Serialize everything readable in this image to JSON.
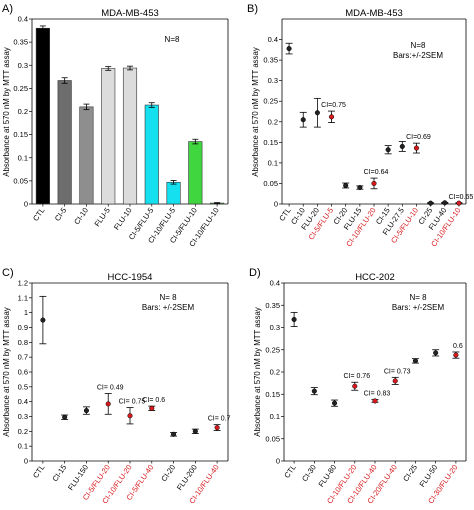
{
  "figure": {
    "ylabel": "Absorbance at 570 nM by MTT assay",
    "red_color": "#d7191c",
    "black_color": "#000000"
  },
  "chart_data": [
    {
      "type": "bar",
      "panel": "A)",
      "title": "MDA-MB-453",
      "ylabel": "Absorbance at 570 nM by MTT assay",
      "ylim": [
        0,
        0.4
      ],
      "yticks": [
        "0",
        "0.05",
        "0.1",
        "0.15",
        "0.2",
        "0.25",
        "0.3",
        "0.35",
        "0.4"
      ],
      "notes": [
        "N=8"
      ],
      "categories": [
        "CTL",
        "CI-5",
        "CI-10",
        "FLU-5",
        "FLU-10",
        "CI-5/FLU-5",
        "CI-10/FLU-5",
        "CI-5/FLU-10",
        "CI-10/FLU-10"
      ],
      "values": [
        0.38,
        0.267,
        0.21,
        0.293,
        0.294,
        0.214,
        0.047,
        0.135,
        0.002
      ],
      "errors": [
        0.005,
        0.006,
        0.006,
        0.004,
        0.004,
        0.005,
        0.004,
        0.005,
        0.001
      ],
      "colors": [
        "#000000",
        "#6d6d6d",
        "#8e8e8e",
        "#dcdcdc",
        "#dcdcdc",
        "#14e0ef",
        "#14e0ef",
        "#3fd640",
        "#3fd640"
      ]
    },
    {
      "type": "scatter",
      "panel": "B)",
      "title": "MDA-MB-453",
      "ylabel": "Absorbance at 570 nM by MTT assay",
      "ylim": [
        0,
        0.45
      ],
      "yticks": [
        "0",
        "0.05",
        "0.1",
        "0.15",
        "0.2",
        "0.25",
        "0.3",
        "0.35",
        "0.4"
      ],
      "notes": [
        "N=8",
        "Bars:+/-2SEM"
      ],
      "categories": [
        "CTL",
        "CI-10",
        "FLU-20",
        "CI-5/FLU-5",
        "CI-20",
        "FLU-15",
        "CI-10/FLU-20",
        "CI-15",
        "FLU-27.5",
        "CI-5/FLU-10",
        "CI-25",
        "FLU-40",
        "CI-10/FLU-10"
      ],
      "red_categories": [
        "CI-5/FLU-5",
        "CI-10/FLU-20",
        "CI-5/FLU-10",
        "CI-10/FLU-10"
      ],
      "values": [
        0.378,
        0.205,
        0.222,
        0.212,
        0.045,
        0.04,
        0.05,
        0.132,
        0.14,
        0.136,
        0.002,
        0.003,
        0.002
      ],
      "errors": [
        0.013,
        0.018,
        0.035,
        0.014,
        0.006,
        0.004,
        0.013,
        0.01,
        0.012,
        0.012,
        0.001,
        0.001,
        0.001
      ],
      "marker_red": [
        false,
        false,
        false,
        true,
        false,
        false,
        true,
        false,
        false,
        true,
        false,
        false,
        true
      ],
      "ci_labels": [
        {
          "label": "CI=0.75",
          "index": 3
        },
        {
          "label": "CI=0.64",
          "index": 6
        },
        {
          "label": "CI=0.69",
          "index": 9
        },
        {
          "label": "CI=0.65",
          "index": 12
        }
      ]
    },
    {
      "type": "scatter",
      "panel": "C)",
      "title": "HCC-1954",
      "ylabel": "Absorbance at 570 nM by MTT assay",
      "ylim": [
        0,
        1.2
      ],
      "yticks": [
        "0",
        "0.1",
        "0.2",
        "0.3",
        "0.4",
        "0.5",
        "0.6",
        "0.7",
        "0.8",
        "0.9",
        "1",
        "1.1",
        "1.2"
      ],
      "notes": [
        "N= 8",
        "Bars: +/-2SEM"
      ],
      "categories": [
        "CTL",
        "CI-15",
        "FLU-150",
        "CI-5/FLU-20",
        "CI-10/FLU-20",
        "CI-5/FLU-40",
        "CI-20",
        "FLU-200",
        "CI-10/FLU-40"
      ],
      "red_categories": [
        "CI-5/FLU-20",
        "CI-10/FLU-20",
        "CI-5/FLU-40",
        "CI-10/FLU-40"
      ],
      "values": [
        0.95,
        0.295,
        0.34,
        0.385,
        0.305,
        0.355,
        0.18,
        0.2,
        0.225
      ],
      "errors": [
        0.16,
        0.015,
        0.025,
        0.07,
        0.055,
        0.015,
        0.012,
        0.015,
        0.02
      ],
      "marker_red": [
        false,
        false,
        false,
        true,
        true,
        true,
        false,
        false,
        true
      ],
      "ci_labels": [
        {
          "label": "CI= 0.49",
          "index": 3
        },
        {
          "label": "CI= 0.75",
          "index": 4
        },
        {
          "label": "CI= 0.6",
          "index": 5
        },
        {
          "label": "CI= 0.7",
          "index": 8
        }
      ]
    },
    {
      "type": "scatter",
      "panel": "D)",
      "title": "HCC-202",
      "ylabel": "Absorbance at 570 nM by MTT assay",
      "ylim": [
        0,
        0.4
      ],
      "yticks": [
        "0",
        "0.05",
        "0.1",
        "0.15",
        "0.2",
        "0.25",
        "0.3",
        "0.35",
        "0.4"
      ],
      "notes": [
        "N= 8",
        "Bars: +/-2SEM"
      ],
      "categories": [
        "CTL",
        "CI-30",
        "FLU-80",
        "CI-10/FLU-20",
        "CI-10/FLU-40",
        "CI-20/FLU-40",
        "CI-25",
        "FLU-50",
        "CI-30/FLU-20"
      ],
      "red_categories": [
        "CI-10/FLU-20",
        "CI-10/FLU-40",
        "CI-20/FLU-40",
        "CI-30/FLU-20"
      ],
      "values": [
        0.318,
        0.157,
        0.13,
        0.168,
        0.135,
        0.18,
        0.225,
        0.243,
        0.238
      ],
      "errors": [
        0.016,
        0.008,
        0.007,
        0.009,
        0.003,
        0.008,
        0.005,
        0.007,
        0.007
      ],
      "marker_red": [
        false,
        false,
        false,
        true,
        true,
        true,
        false,
        false,
        true
      ],
      "ci_labels": [
        {
          "label": "CI= 0.76",
          "index": 3
        },
        {
          "label": "CI= 0.83",
          "index": 4
        },
        {
          "label": "CI= 0.73",
          "index": 5
        },
        {
          "label": "0.6",
          "index": 8
        }
      ]
    }
  ]
}
